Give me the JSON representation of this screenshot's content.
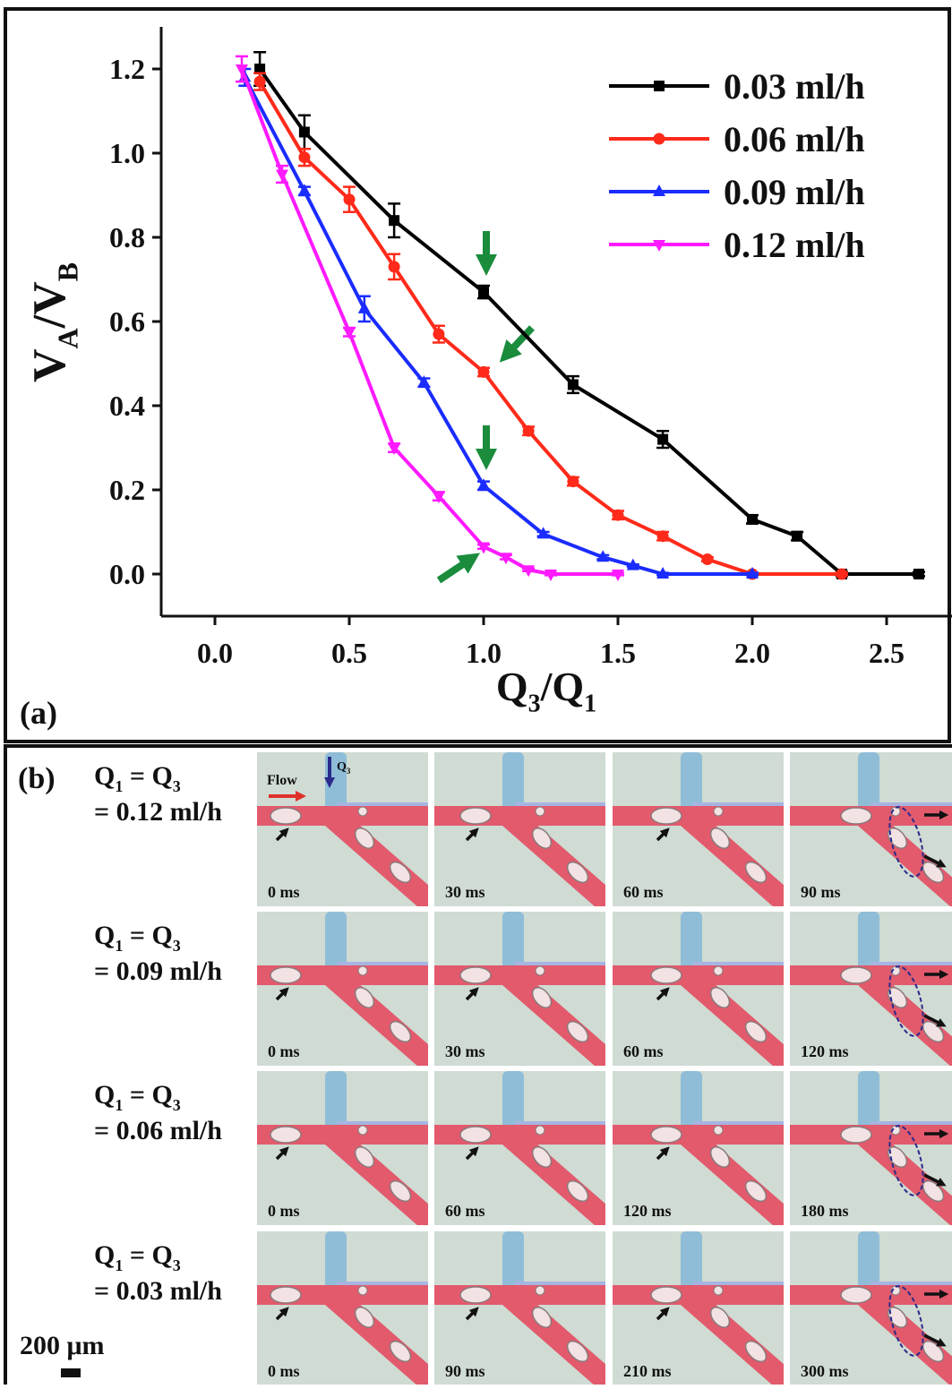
{
  "chart_data": {
    "type": "line",
    "panel_label": "(a)",
    "x_label": [
      "Q",
      "3",
      "/Q",
      "1"
    ],
    "y_label": [
      "V",
      "A",
      "/V",
      "B"
    ],
    "xlim": [
      -0.2,
      2.7
    ],
    "ylim": [
      -0.1,
      1.3
    ],
    "xticks": [
      {
        "value": 0,
        "label": "0.0"
      },
      0.5,
      {
        "value": 1,
        "label": "1.0"
      },
      1.5,
      {
        "value": 2,
        "label": "2.0"
      },
      2.5
    ],
    "yticks": [
      {
        "value": 0,
        "label": "0.0"
      },
      0.2,
      0.4,
      0.6,
      0.8,
      {
        "value": 1,
        "label": "1.0"
      },
      1.2
    ],
    "legend": "upper right",
    "series": [
      {
        "name": "0.03 ml/h",
        "color": "#000000",
        "marker": "square",
        "x": [
          0.167,
          0.333,
          0.667,
          1.0,
          1.333,
          1.667,
          2.0,
          2.167,
          2.333,
          2.62
        ],
        "values": [
          1.2,
          1.05,
          0.84,
          0.67,
          0.45,
          0.32,
          0.13,
          0.09,
          0.0,
          0.0
        ],
        "errors": [
          0.04,
          0.04,
          0.04,
          0.015,
          0.02,
          0.02,
          0.01,
          0.01,
          0.005,
          0.005
        ]
      },
      {
        "name": "0.06 ml/h",
        "color": "#ff2a1a",
        "marker": "circle",
        "x": [
          0.167,
          0.333,
          0.5,
          0.667,
          0.833,
          1.0,
          1.167,
          1.333,
          1.5,
          1.667,
          1.833,
          2.0,
          2.333
        ],
        "values": [
          1.17,
          0.99,
          0.89,
          0.73,
          0.57,
          0.48,
          0.34,
          0.22,
          0.14,
          0.09,
          0.035,
          0.0,
          0.0
        ],
        "errors": [
          0.02,
          0.02,
          0.03,
          0.03,
          0.02,
          0.01,
          0.01,
          0.01,
          0.01,
          0.01,
          0.005,
          0.003,
          0.003
        ]
      },
      {
        "name": "0.09 ml/h",
        "color": "#1a2cff",
        "marker": "triangle-up",
        "x": [
          0.111,
          0.333,
          0.556,
          0.778,
          1.0,
          1.222,
          1.444,
          1.556,
          1.667,
          2.0
        ],
        "values": [
          1.18,
          0.91,
          0.63,
          0.455,
          0.21,
          0.095,
          0.04,
          0.02,
          0.0,
          0.0
        ],
        "errors": [
          0.02,
          0.01,
          0.03,
          0.01,
          0.01,
          0.005,
          0.005,
          0.003,
          0.003,
          0.003
        ]
      },
      {
        "name": "0.12 ml/h",
        "color": "#ff1aff",
        "marker": "triangle-down",
        "x": [
          0.1,
          0.25,
          0.5,
          0.667,
          0.833,
          1.0,
          1.083,
          1.167,
          1.25,
          1.5
        ],
        "values": [
          1.2,
          0.95,
          0.575,
          0.3,
          0.185,
          0.065,
          0.04,
          0.01,
          0.0,
          0.0
        ],
        "errors": [
          0.03,
          0.02,
          0.01,
          0.01,
          0.01,
          0.005,
          0.005,
          0.003,
          0.003,
          0.003
        ]
      }
    ]
  },
  "panel_b": {
    "label": "(b)",
    "flow_label": "Flow",
    "q3_label": [
      "Q",
      "3"
    ],
    "scale_bar": "200 μm",
    "rows": [
      {
        "condition": [
          "Q",
          "1",
          " = Q",
          "3"
        ],
        "rate": "= 0.12 ml/h",
        "times": [
          "0 ms",
          "30 ms",
          "60 ms",
          "90 ms"
        ]
      },
      {
        "condition": [
          "Q",
          "1",
          " = Q",
          "3"
        ],
        "rate": "= 0.09 ml/h",
        "times": [
          "0 ms",
          "30 ms",
          "60 ms",
          "120 ms"
        ]
      },
      {
        "condition": [
          "Q",
          "1",
          " = Q",
          "3"
        ],
        "rate": "= 0.06 ml/h",
        "times": [
          "0 ms",
          "60 ms",
          "120 ms",
          "180 ms"
        ]
      },
      {
        "condition": [
          "Q",
          "1",
          " = Q",
          "3"
        ],
        "rate": "= 0.03 ml/h",
        "times": [
          "0 ms",
          "90 ms",
          "210 ms",
          "300 ms"
        ]
      }
    ]
  }
}
